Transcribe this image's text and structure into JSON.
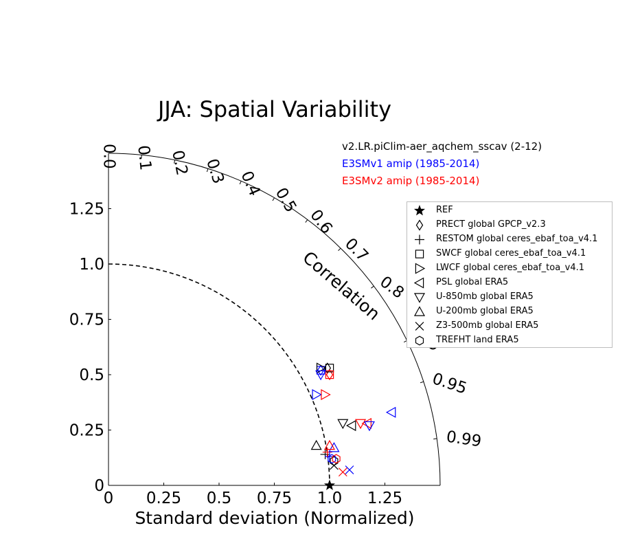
{
  "chart_data": {
    "type": "scatter",
    "title": "JJA: Spatial Variability",
    "xlabel": "Standard deviation (Normalized)",
    "ylabel": "",
    "corr_label": "Correlation",
    "xlim": [
      0,
      1.5
    ],
    "ylim": [
      0,
      1.5
    ],
    "x_ticks": [
      "0",
      "0.25",
      "0.5",
      "0.75",
      "1.0",
      "1.25"
    ],
    "y_ticks": [
      "0",
      "0.25",
      "0.5",
      "0.75",
      "1.0",
      "1.25"
    ],
    "corr_ticks": [
      "0.0",
      "0.1",
      "0.2",
      "0.3",
      "0.4",
      "0.5",
      "0.6",
      "0.7",
      "0.8",
      "0.9",
      "0.95",
      "0.99"
    ],
    "ref_std": 1.0,
    "model_labels": [
      {
        "text": "v2.LR.piClim-aer_aqchem_sscav (2-12)",
        "color": "#000000"
      },
      {
        "text": "E3SMv1 amip (1985-2014)",
        "color": "#0000ff"
      },
      {
        "text": "E3SMv2 amip (1985-2014)",
        "color": "#ff0000"
      }
    ],
    "legend": [
      {
        "marker": "star",
        "label": "REF"
      },
      {
        "marker": "diamond",
        "label": "PRECT global GPCP_v2.3"
      },
      {
        "marker": "plus",
        "label": "RESTOM global ceres_ebaf_toa_v4.1"
      },
      {
        "marker": "square",
        "label": "SWCF global ceres_ebaf_toa_v4.1"
      },
      {
        "marker": "tri_right",
        "label": "LWCF global ceres_ebaf_toa_v4.1"
      },
      {
        "marker": "tri_left",
        "label": "PSL global ERA5"
      },
      {
        "marker": "tri_down",
        "label": "U-850mb global ERA5"
      },
      {
        "marker": "tri_up",
        "label": "U-200mb global ERA5"
      },
      {
        "marker": "x",
        "label": "Z3-500mb global ERA5"
      },
      {
        "marker": "hexagon",
        "label": "TREFHT land ERA5"
      }
    ],
    "points": [
      {
        "marker": "star",
        "color": "#000000",
        "x": 1.0,
        "y": 0.0
      },
      {
        "marker": "diamond",
        "color": "#000000",
        "x": 0.99,
        "y": 0.53
      },
      {
        "marker": "diamond",
        "color": "#0000ff",
        "x": 0.96,
        "y": 0.52
      },
      {
        "marker": "diamond",
        "color": "#ff0000",
        "x": 1.0,
        "y": 0.5
      },
      {
        "marker": "plus",
        "color": "#000000",
        "x": 0.98,
        "y": 0.14
      },
      {
        "marker": "plus",
        "color": "#0000ff",
        "x": 1.0,
        "y": 0.13
      },
      {
        "marker": "plus",
        "color": "#ff0000",
        "x": 0.99,
        "y": 0.15
      },
      {
        "marker": "square",
        "color": "#000000",
        "x": 1.0,
        "y": 0.53
      },
      {
        "marker": "square",
        "color": "#0000ff",
        "x": 0.96,
        "y": 0.52
      },
      {
        "marker": "square",
        "color": "#ff0000",
        "x": 1.0,
        "y": 0.5
      },
      {
        "marker": "tri_right",
        "color": "#000000",
        "x": 0.96,
        "y": 0.53
      },
      {
        "marker": "tri_right",
        "color": "#0000ff",
        "x": 0.94,
        "y": 0.41
      },
      {
        "marker": "tri_right",
        "color": "#ff0000",
        "x": 0.98,
        "y": 0.41
      },
      {
        "marker": "tri_left",
        "color": "#000000",
        "x": 1.1,
        "y": 0.27
      },
      {
        "marker": "tri_left",
        "color": "#0000ff",
        "x": 1.28,
        "y": 0.33
      },
      {
        "marker": "tri_left",
        "color": "#ff0000",
        "x": 1.17,
        "y": 0.28
      },
      {
        "marker": "tri_down",
        "color": "#000000",
        "x": 1.06,
        "y": 0.28
      },
      {
        "marker": "tri_down",
        "color": "#0000ff",
        "x": 0.96,
        "y": 0.5
      },
      {
        "marker": "tri_down",
        "color": "#ff0000",
        "x": 1.14,
        "y": 0.28
      },
      {
        "marker": "tri_down",
        "color": "#0000ff",
        "x": 1.18,
        "y": 0.27
      },
      {
        "marker": "tri_up",
        "color": "#000000",
        "x": 0.94,
        "y": 0.18
      },
      {
        "marker": "tri_up",
        "color": "#0000ff",
        "x": 1.02,
        "y": 0.17
      },
      {
        "marker": "tri_up",
        "color": "#ff0000",
        "x": 1.0,
        "y": 0.18
      },
      {
        "marker": "x",
        "color": "#000000",
        "x": 1.02,
        "y": 0.09
      },
      {
        "marker": "x",
        "color": "#0000ff",
        "x": 1.09,
        "y": 0.07
      },
      {
        "marker": "x",
        "color": "#ff0000",
        "x": 1.06,
        "y": 0.06
      },
      {
        "marker": "hexagon",
        "color": "#000000",
        "x": 1.02,
        "y": 0.11
      },
      {
        "marker": "hexagon",
        "color": "#0000ff",
        "x": 1.01,
        "y": 0.12
      },
      {
        "marker": "hexagon",
        "color": "#ff0000",
        "x": 1.03,
        "y": 0.12
      }
    ]
  }
}
